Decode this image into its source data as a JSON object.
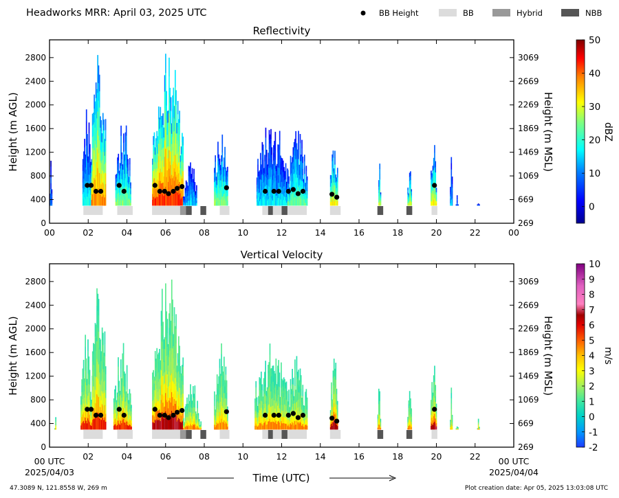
{
  "header": {
    "title": "Headworks MRR:  April 03, 2025 UTC",
    "legend": [
      {
        "label": "BB Height",
        "color": "#000000",
        "kind": "dot"
      },
      {
        "label": "BB",
        "color": "#dcdcdc",
        "kind": "rect"
      },
      {
        "label": "Hybrid",
        "color": "#999999",
        "kind": "rect"
      },
      {
        "label": "NBB",
        "color": "#555555",
        "kind": "rect"
      }
    ]
  },
  "footer": {
    "location": "47.3089 N, 121.8558 W, 269 m",
    "created": "Plot creation date: Apr 05, 2025 13:03:08 UTC",
    "xaxis_title": "Time (UTC)",
    "start_label": "00 UTC",
    "start_date": "2025/04/03",
    "end_label": "00 UTC",
    "end_date": "2025/04/04"
  },
  "chart_data": [
    {
      "type": "heatmap",
      "title": "Reflectivity",
      "ylabel": "Height (m AGL)",
      "y2label": "Height (m MSL)",
      "xlim": [
        0,
        24
      ],
      "ylim": [
        0,
        3100
      ],
      "x_ticks": [
        "00",
        "02",
        "04",
        "06",
        "08",
        "10",
        "12",
        "14",
        "16",
        "18",
        "20",
        "22",
        "00"
      ],
      "y_ticks": [
        0,
        400,
        800,
        1200,
        1600,
        2000,
        2400,
        2800
      ],
      "y2_ticks": [
        269,
        669,
        1069,
        1469,
        1869,
        2269,
        2669,
        3069
      ],
      "colorbar": {
        "label": "dBZ",
        "min": -5,
        "max": 50,
        "ticks": [
          0,
          10,
          20,
          30,
          40,
          50
        ]
      },
      "echo_columns": [
        {
          "t0": 0.0,
          "t1": 0.1,
          "top": 1200,
          "peak": 8
        },
        {
          "t0": 1.7,
          "t1": 2.15,
          "top": 2000,
          "peak": 15
        },
        {
          "t0": 2.15,
          "t1": 2.9,
          "top": 3000,
          "peak": 35
        },
        {
          "t0": 3.4,
          "t1": 4.2,
          "top": 1800,
          "peak": 22
        },
        {
          "t0": 5.3,
          "t1": 6.9,
          "top": 3000,
          "peak": 40
        },
        {
          "t0": 6.9,
          "t1": 7.6,
          "top": 1100,
          "peak": 12
        },
        {
          "t0": 8.5,
          "t1": 9.2,
          "top": 1800,
          "peak": 22
        },
        {
          "t0": 10.7,
          "t1": 12.3,
          "top": 1800,
          "peak": 14
        },
        {
          "t0": 12.3,
          "t1": 13.3,
          "top": 1600,
          "peak": 20
        },
        {
          "t0": 14.5,
          "t1": 14.9,
          "top": 1600,
          "peak": 28
        },
        {
          "t0": 17.0,
          "t1": 17.1,
          "top": 1200,
          "peak": 25
        },
        {
          "t0": 18.5,
          "t1": 18.7,
          "top": 1000,
          "peak": 25
        },
        {
          "t0": 19.7,
          "t1": 20.0,
          "top": 1500,
          "peak": 28
        },
        {
          "t0": 20.7,
          "t1": 20.8,
          "top": 1200,
          "peak": 12
        },
        {
          "t0": 21.0,
          "t1": 21.1,
          "top": 500,
          "peak": 8
        },
        {
          "t0": 22.1,
          "t1": 22.2,
          "top": 500,
          "peak": 8
        }
      ],
      "bb_height_points": [
        {
          "x": 1.95,
          "y": 640
        },
        {
          "x": 2.15,
          "y": 640
        },
        {
          "x": 2.4,
          "y": 540
        },
        {
          "x": 2.65,
          "y": 540
        },
        {
          "x": 3.6,
          "y": 640
        },
        {
          "x": 3.85,
          "y": 540
        },
        {
          "x": 5.45,
          "y": 640
        },
        {
          "x": 5.7,
          "y": 540
        },
        {
          "x": 5.95,
          "y": 540
        },
        {
          "x": 6.15,
          "y": 500
        },
        {
          "x": 6.4,
          "y": 540
        },
        {
          "x": 6.6,
          "y": 590
        },
        {
          "x": 6.85,
          "y": 620
        },
        {
          "x": 9.15,
          "y": 600
        },
        {
          "x": 11.15,
          "y": 540
        },
        {
          "x": 11.6,
          "y": 540
        },
        {
          "x": 11.85,
          "y": 540
        },
        {
          "x": 12.35,
          "y": 540
        },
        {
          "x": 12.6,
          "y": 570
        },
        {
          "x": 12.85,
          "y": 500
        },
        {
          "x": 13.1,
          "y": 540
        },
        {
          "x": 14.6,
          "y": 490
        },
        {
          "x": 14.85,
          "y": 440
        },
        {
          "x": 19.9,
          "y": 640
        }
      ],
      "bb_type_segments": [
        {
          "t0": 1.75,
          "t1": 2.75,
          "type": "BB"
        },
        {
          "t0": 3.5,
          "t1": 4.3,
          "type": "BB"
        },
        {
          "t0": 5.3,
          "t1": 6.75,
          "type": "BB"
        },
        {
          "t0": 6.75,
          "t1": 7.05,
          "type": "Hybrid"
        },
        {
          "t0": 7.05,
          "t1": 7.35,
          "type": "NBB"
        },
        {
          "t0": 7.8,
          "t1": 8.1,
          "type": "NBB"
        },
        {
          "t0": 8.8,
          "t1": 9.3,
          "type": "BB"
        },
        {
          "t0": 11.0,
          "t1": 11.3,
          "type": "BB"
        },
        {
          "t0": 11.3,
          "t1": 11.55,
          "type": "NBB"
        },
        {
          "t0": 11.55,
          "t1": 12.0,
          "type": "BB"
        },
        {
          "t0": 12.0,
          "t1": 12.3,
          "type": "NBB"
        },
        {
          "t0": 12.3,
          "t1": 13.3,
          "type": "BB"
        },
        {
          "t0": 14.5,
          "t1": 15.05,
          "type": "BB"
        },
        {
          "t0": 16.95,
          "t1": 17.25,
          "type": "NBB"
        },
        {
          "t0": 18.45,
          "t1": 18.75,
          "type": "NBB"
        },
        {
          "t0": 19.75,
          "t1": 20.05,
          "type": "BB"
        }
      ]
    },
    {
      "type": "heatmap",
      "title": "Vertical Velocity",
      "ylabel": "Height (m AGL)",
      "y2label": "Height (m MSL)",
      "xlim": [
        0,
        24
      ],
      "ylim": [
        0,
        3100
      ],
      "x_ticks": [
        "",
        "02",
        "04",
        "06",
        "08",
        "10",
        "12",
        "14",
        "16",
        "18",
        "20",
        "22",
        ""
      ],
      "y_ticks": [
        0,
        400,
        800,
        1200,
        1600,
        2000,
        2400,
        2800
      ],
      "y2_ticks": [
        269,
        669,
        1069,
        1469,
        1869,
        2269,
        2669,
        3069
      ],
      "colorbar": {
        "label": "m/s",
        "min": -2,
        "max": 10,
        "ticks": [
          -2,
          -1,
          0,
          1,
          2,
          3,
          4,
          5,
          6,
          7,
          8,
          9,
          10
        ]
      },
      "echo_columns": [
        {
          "t0": 0.25,
          "t1": 0.32,
          "top": 600,
          "peak": 3
        },
        {
          "t0": 1.6,
          "t1": 2.2,
          "top": 2000,
          "peak": 5
        },
        {
          "t0": 2.2,
          "t1": 2.9,
          "top": 3000,
          "peak": 5
        },
        {
          "t0": 3.3,
          "t1": 4.2,
          "top": 1800,
          "peak": 5
        },
        {
          "t0": 5.3,
          "t1": 6.9,
          "top": 3000,
          "peak": 6
        },
        {
          "t0": 6.9,
          "t1": 7.8,
          "top": 1100,
          "peak": 4
        },
        {
          "t0": 8.5,
          "t1": 9.2,
          "top": 1800,
          "peak": 4
        },
        {
          "t0": 10.6,
          "t1": 12.3,
          "top": 1800,
          "peak": 4
        },
        {
          "t0": 12.3,
          "t1": 13.3,
          "top": 1600,
          "peak": 4
        },
        {
          "t0": 14.5,
          "t1": 14.9,
          "top": 1600,
          "peak": 6
        },
        {
          "t0": 16.95,
          "t1": 17.1,
          "top": 1200,
          "peak": 4
        },
        {
          "t0": 18.5,
          "t1": 18.7,
          "top": 1000,
          "peak": 4
        },
        {
          "t0": 19.7,
          "t1": 20.0,
          "top": 1500,
          "peak": 6
        },
        {
          "t0": 20.7,
          "t1": 20.8,
          "top": 1200,
          "peak": 3
        },
        {
          "t0": 21.0,
          "t1": 21.1,
          "top": 500,
          "peak": 3
        },
        {
          "t0": 22.1,
          "t1": 22.2,
          "top": 500,
          "peak": 4
        }
      ],
      "bb_height_points": [
        {
          "x": 1.95,
          "y": 640
        },
        {
          "x": 2.15,
          "y": 640
        },
        {
          "x": 2.4,
          "y": 540
        },
        {
          "x": 2.65,
          "y": 540
        },
        {
          "x": 3.6,
          "y": 640
        },
        {
          "x": 3.85,
          "y": 540
        },
        {
          "x": 5.45,
          "y": 640
        },
        {
          "x": 5.7,
          "y": 540
        },
        {
          "x": 5.95,
          "y": 540
        },
        {
          "x": 6.15,
          "y": 500
        },
        {
          "x": 6.4,
          "y": 540
        },
        {
          "x": 6.6,
          "y": 590
        },
        {
          "x": 6.85,
          "y": 620
        },
        {
          "x": 9.15,
          "y": 600
        },
        {
          "x": 11.15,
          "y": 540
        },
        {
          "x": 11.6,
          "y": 540
        },
        {
          "x": 11.85,
          "y": 540
        },
        {
          "x": 12.35,
          "y": 540
        },
        {
          "x": 12.6,
          "y": 570
        },
        {
          "x": 12.85,
          "y": 500
        },
        {
          "x": 13.1,
          "y": 540
        },
        {
          "x": 14.6,
          "y": 490
        },
        {
          "x": 14.85,
          "y": 440
        },
        {
          "x": 19.9,
          "y": 640
        }
      ],
      "bb_type_segments": [
        {
          "t0": 1.75,
          "t1": 2.75,
          "type": "BB"
        },
        {
          "t0": 3.5,
          "t1": 4.3,
          "type": "BB"
        },
        {
          "t0": 5.3,
          "t1": 6.75,
          "type": "BB"
        },
        {
          "t0": 6.75,
          "t1": 7.05,
          "type": "Hybrid"
        },
        {
          "t0": 7.05,
          "t1": 7.35,
          "type": "NBB"
        },
        {
          "t0": 7.8,
          "t1": 8.1,
          "type": "NBB"
        },
        {
          "t0": 8.8,
          "t1": 9.3,
          "type": "BB"
        },
        {
          "t0": 11.0,
          "t1": 11.3,
          "type": "BB"
        },
        {
          "t0": 11.3,
          "t1": 11.55,
          "type": "NBB"
        },
        {
          "t0": 11.55,
          "t1": 12.0,
          "type": "BB"
        },
        {
          "t0": 12.0,
          "t1": 12.3,
          "type": "NBB"
        },
        {
          "t0": 12.3,
          "t1": 13.3,
          "type": "BB"
        },
        {
          "t0": 14.5,
          "t1": 15.05,
          "type": "BB"
        },
        {
          "t0": 16.95,
          "t1": 17.25,
          "type": "NBB"
        },
        {
          "t0": 18.45,
          "t1": 18.75,
          "type": "NBB"
        },
        {
          "t0": 19.75,
          "t1": 20.05,
          "type": "BB"
        }
      ]
    }
  ]
}
